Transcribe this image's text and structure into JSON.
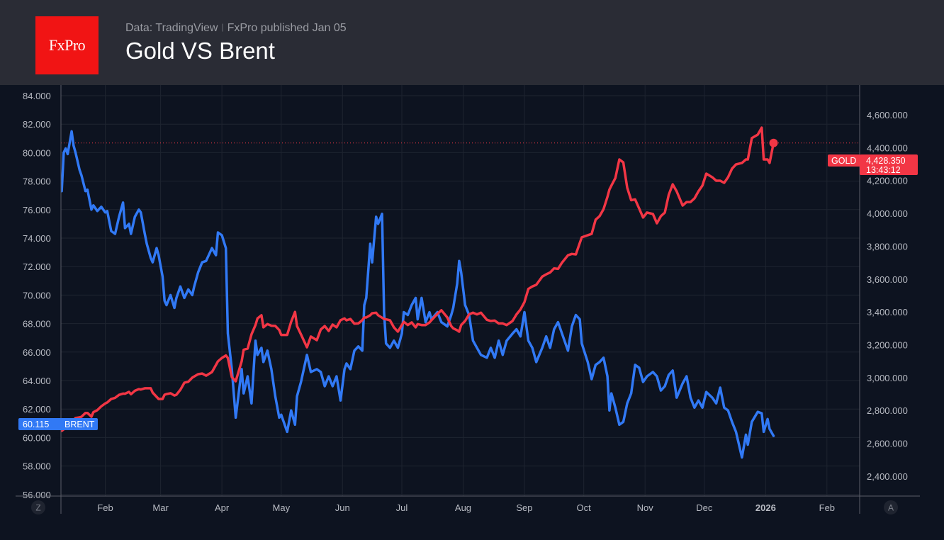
{
  "header": {
    "logo_text": "FxPro",
    "source": "Data: TradingView",
    "published": "FxPro published Jan 05",
    "title": "Gold VS Brent"
  },
  "chart_data": {
    "type": "line",
    "title": "Gold VS Brent",
    "colors": {
      "Brent": "#3179f5",
      "Gold": "#f23645",
      "background": "#0d1320",
      "grid": "#1e2430"
    },
    "left_axis": {
      "series": "Brent",
      "ylim": [
        56,
        84
      ],
      "ticks": [
        "84.000",
        "82.000",
        "80.000",
        "78.000",
        "76.000",
        "74.000",
        "72.000",
        "70.000",
        "68.000",
        "66.000",
        "64.000",
        "62.000",
        "60.000",
        "58.000",
        "56.000"
      ]
    },
    "right_axis": {
      "series": "Gold",
      "ylim": [
        2400,
        4600
      ],
      "ticks": [
        "4,600.000",
        "4,400.000",
        "4,200.000",
        "4,000.000",
        "3,800.000",
        "3,600.000",
        "3,400.000",
        "3,200.000",
        "3,000.000",
        "2,800.000",
        "2,600.000",
        "2,400.000"
      ]
    },
    "x_ticks": [
      {
        "label": "Feb",
        "date": "2025-02-01"
      },
      {
        "label": "Mar",
        "date": "2025-03-01"
      },
      {
        "label": "Apr",
        "date": "2025-04-01"
      },
      {
        "label": "May",
        "date": "2025-05-01"
      },
      {
        "label": "Jun",
        "date": "2025-06-01"
      },
      {
        "label": "Jul",
        "date": "2025-07-01"
      },
      {
        "label": "Aug",
        "date": "2025-08-01"
      },
      {
        "label": "Sep",
        "date": "2025-09-01"
      },
      {
        "label": "Oct",
        "date": "2025-10-01"
      },
      {
        "label": "Nov",
        "date": "2025-11-01"
      },
      {
        "label": "Dec",
        "date": "2025-12-01"
      },
      {
        "label": "2026",
        "date": "2026-01-01"
      },
      {
        "label": "Feb",
        "date": "2026-02-01"
      }
    ],
    "grid": true,
    "axis_buttons": {
      "left": "Z",
      "right": "A"
    },
    "last_labels": {
      "brent": {
        "name": "BRENT",
        "value": "60.115"
      },
      "gold": {
        "name": "GOLD",
        "value": "4,428.350",
        "time": "13:43:12"
      }
    },
    "columns": [
      "date",
      "Brent",
      "Gold"
    ],
    "points": [
      [
        "2025-01-10",
        77.3,
        2676
      ],
      [
        "2025-01-11",
        80.0,
        2685
      ],
      [
        "2025-01-12",
        80.3,
        2694
      ],
      [
        "2025-01-13",
        79.9,
        2710
      ],
      [
        "2025-01-15",
        81.5,
        2732
      ],
      [
        "2025-01-16",
        80.5,
        2743
      ],
      [
        "2025-01-17",
        80.0,
        2754
      ],
      [
        "2025-01-19",
        78.8,
        2758
      ],
      [
        "2025-01-20",
        78.4,
        2762
      ],
      [
        "2025-01-22",
        77.3,
        2785
      ],
      [
        "2025-01-23",
        77.4,
        2785
      ],
      [
        "2025-01-25",
        76.0,
        2762
      ],
      [
        "2025-01-26",
        76.3,
        2790
      ],
      [
        "2025-01-28",
        75.9,
        2802
      ],
      [
        "2025-01-30",
        76.2,
        2825
      ],
      [
        "2025-02-01",
        75.8,
        2843
      ],
      [
        "2025-02-02",
        75.9,
        2849
      ],
      [
        "2025-02-04",
        74.5,
        2870
      ],
      [
        "2025-02-06",
        74.3,
        2877
      ],
      [
        "2025-02-08",
        75.5,
        2895
      ],
      [
        "2025-02-10",
        76.5,
        2903
      ],
      [
        "2025-02-11",
        74.7,
        2902
      ],
      [
        "2025-02-13",
        75.0,
        2913
      ],
      [
        "2025-02-14",
        74.3,
        2899
      ],
      [
        "2025-02-16",
        75.5,
        2920
      ],
      [
        "2025-02-18",
        76.0,
        2930
      ],
      [
        "2025-02-19",
        75.8,
        2928
      ],
      [
        "2025-02-21",
        74.3,
        2935
      ],
      [
        "2025-02-22",
        73.6,
        2935
      ],
      [
        "2025-02-24",
        72.6,
        2935
      ],
      [
        "2025-02-25",
        72.3,
        2909
      ],
      [
        "2025-02-27",
        73.3,
        2883
      ],
      [
        "2025-02-28",
        72.8,
        2870
      ],
      [
        "2025-03-02",
        71.3,
        2870
      ],
      [
        "2025-03-03",
        69.6,
        2896
      ],
      [
        "2025-03-04",
        69.3,
        2900
      ],
      [
        "2025-03-06",
        70.0,
        2905
      ],
      [
        "2025-03-08",
        69.1,
        2891
      ],
      [
        "2025-03-09",
        69.8,
        2896
      ],
      [
        "2025-03-11",
        70.6,
        2926
      ],
      [
        "2025-03-13",
        69.8,
        2969
      ],
      [
        "2025-03-15",
        70.4,
        2975
      ],
      [
        "2025-03-17",
        70.0,
        3000
      ],
      [
        "2025-03-18",
        70.6,
        3007
      ],
      [
        "2025-03-20",
        71.6,
        3021
      ],
      [
        "2025-03-22",
        72.3,
        3025
      ],
      [
        "2025-03-24",
        72.4,
        3012
      ],
      [
        "2025-03-27",
        73.3,
        3034
      ],
      [
        "2025-03-29",
        72.8,
        3077
      ],
      [
        "2025-03-30",
        74.4,
        3099
      ],
      [
        "2025-04-01",
        74.2,
        3120
      ],
      [
        "2025-04-03",
        73.3,
        3135
      ],
      [
        "2025-04-04",
        67.3,
        3120
      ],
      [
        "2025-04-06",
        64.8,
        3003
      ],
      [
        "2025-04-08",
        61.4,
        2978
      ],
      [
        "2025-04-11",
        64.8,
        3099
      ],
      [
        "2025-04-12",
        63.1,
        3170
      ],
      [
        "2025-04-14",
        64.3,
        3177
      ],
      [
        "2025-04-16",
        62.4,
        3264
      ],
      [
        "2025-04-18",
        66.8,
        3320
      ],
      [
        "2025-04-19",
        65.8,
        3360
      ],
      [
        "2025-04-21",
        66.3,
        3380
      ],
      [
        "2025-04-22",
        65.3,
        3306
      ],
      [
        "2025-04-24",
        66.1,
        3326
      ],
      [
        "2025-04-26",
        64.8,
        3316
      ],
      [
        "2025-04-28",
        62.9,
        3315
      ],
      [
        "2025-04-30",
        61.4,
        3290
      ],
      [
        "2025-05-01",
        61.6,
        3260
      ],
      [
        "2025-05-04",
        60.4,
        3260
      ],
      [
        "2025-05-06",
        61.9,
        3340
      ],
      [
        "2025-05-08",
        60.9,
        3400
      ],
      [
        "2025-05-09",
        62.9,
        3314
      ],
      [
        "2025-05-11",
        63.9,
        3263
      ],
      [
        "2025-05-14",
        65.8,
        3185
      ],
      [
        "2025-05-16",
        64.6,
        3250
      ],
      [
        "2025-05-19",
        64.8,
        3228
      ],
      [
        "2025-05-21",
        64.6,
        3293
      ],
      [
        "2025-05-23",
        63.6,
        3314
      ],
      [
        "2025-05-25",
        64.3,
        3284
      ],
      [
        "2025-05-27",
        63.6,
        3323
      ],
      [
        "2025-05-29",
        64.3,
        3306
      ],
      [
        "2025-05-31",
        62.6,
        3350
      ],
      [
        "2025-06-02",
        64.8,
        3360
      ],
      [
        "2025-06-03",
        65.2,
        3349
      ],
      [
        "2025-06-05",
        64.8,
        3357
      ],
      [
        "2025-06-07",
        66.1,
        3328
      ],
      [
        "2025-06-09",
        66.4,
        3330
      ],
      [
        "2025-06-11",
        66.1,
        3350
      ],
      [
        "2025-06-12",
        69.3,
        3366
      ],
      [
        "2025-06-13",
        69.8,
        3366
      ],
      [
        "2025-06-15",
        73.6,
        3380
      ],
      [
        "2025-06-16",
        72.3,
        3392
      ],
      [
        "2025-06-18",
        75.5,
        3395
      ],
      [
        "2025-06-19",
        75.0,
        3380
      ],
      [
        "2025-06-21",
        75.7,
        3365
      ],
      [
        "2025-06-22",
        68.8,
        3357
      ],
      [
        "2025-06-23",
        66.6,
        3355
      ],
      [
        "2025-06-25",
        66.3,
        3349
      ],
      [
        "2025-06-27",
        66.8,
        3306
      ],
      [
        "2025-06-29",
        66.3,
        3280
      ],
      [
        "2025-07-01",
        67.3,
        3320
      ],
      [
        "2025-07-02",
        68.8,
        3340
      ],
      [
        "2025-07-04",
        68.6,
        3320
      ],
      [
        "2025-07-06",
        69.3,
        3336
      ],
      [
        "2025-07-08",
        69.8,
        3306
      ],
      [
        "2025-07-09",
        68.3,
        3326
      ],
      [
        "2025-07-11",
        69.8,
        3320
      ],
      [
        "2025-07-13",
        68.1,
        3320
      ],
      [
        "2025-07-15",
        68.8,
        3336
      ],
      [
        "2025-07-16",
        68.3,
        3350
      ],
      [
        "2025-07-19",
        68.8,
        3388
      ],
      [
        "2025-07-21",
        68.1,
        3410
      ],
      [
        "2025-07-24",
        67.8,
        3366
      ],
      [
        "2025-07-26",
        68.6,
        3314
      ],
      [
        "2025-07-27",
        69.1,
        3300
      ],
      [
        "2025-07-29",
        70.8,
        3288
      ],
      [
        "2025-07-30",
        72.4,
        3280
      ],
      [
        "2025-07-31",
        71.6,
        3320
      ],
      [
        "2025-08-02",
        69.3,
        3345
      ],
      [
        "2025-08-04",
        68.6,
        3385
      ],
      [
        "2025-08-06",
        66.8,
        3395
      ],
      [
        "2025-08-08",
        66.3,
        3385
      ],
      [
        "2025-08-10",
        65.8,
        3395
      ],
      [
        "2025-08-13",
        65.6,
        3352
      ],
      [
        "2025-08-15",
        66.3,
        3345
      ],
      [
        "2025-08-17",
        65.6,
        3347
      ],
      [
        "2025-08-19",
        66.8,
        3330
      ],
      [
        "2025-08-21",
        65.8,
        3330
      ],
      [
        "2025-08-23",
        66.8,
        3320
      ],
      [
        "2025-08-26",
        67.3,
        3345
      ],
      [
        "2025-08-28",
        67.6,
        3385
      ],
      [
        "2025-08-30",
        67.1,
        3415
      ],
      [
        "2025-09-01",
        68.8,
        3460
      ],
      [
        "2025-09-03",
        66.8,
        3540
      ],
      [
        "2025-09-05",
        66.3,
        3555
      ],
      [
        "2025-09-07",
        65.3,
        3565
      ],
      [
        "2025-09-10",
        66.3,
        3615
      ],
      [
        "2025-09-12",
        67.1,
        3629
      ],
      [
        "2025-09-14",
        66.3,
        3640
      ],
      [
        "2025-09-16",
        67.6,
        3665
      ],
      [
        "2025-09-18",
        68.1,
        3662
      ],
      [
        "2025-09-20",
        67.3,
        3700
      ],
      [
        "2025-09-23",
        66.1,
        3745
      ],
      [
        "2025-09-25",
        67.8,
        3753
      ],
      [
        "2025-09-27",
        68.6,
        3750
      ],
      [
        "2025-09-29",
        68.3,
        3820
      ],
      [
        "2025-09-30",
        66.6,
        3854
      ],
      [
        "2025-10-03",
        65.3,
        3867
      ],
      [
        "2025-10-05",
        64.1,
        3875
      ],
      [
        "2025-10-07",
        65.1,
        3961
      ],
      [
        "2025-10-09",
        65.3,
        3983
      ],
      [
        "2025-10-11",
        65.6,
        4026
      ],
      [
        "2025-10-13",
        64.3,
        4100
      ],
      [
        "2025-10-14",
        61.9,
        4145
      ],
      [
        "2025-10-15",
        63.1,
        4169
      ],
      [
        "2025-10-17",
        62.1,
        4215
      ],
      [
        "2025-10-19",
        60.9,
        4328
      ],
      [
        "2025-10-21",
        61.1,
        4310
      ],
      [
        "2025-10-23",
        62.4,
        4156
      ],
      [
        "2025-10-25",
        63.1,
        4080
      ],
      [
        "2025-10-27",
        65.1,
        4085
      ],
      [
        "2025-10-29",
        64.9,
        4030
      ],
      [
        "2025-10-31",
        63.9,
        3975
      ],
      [
        "2025-11-02",
        64.3,
        4005
      ],
      [
        "2025-11-05",
        64.6,
        3996
      ],
      [
        "2025-11-07",
        64.3,
        3940
      ],
      [
        "2025-11-09",
        63.3,
        3983
      ],
      [
        "2025-11-11",
        63.6,
        4005
      ],
      [
        "2025-11-13",
        64.4,
        4113
      ],
      [
        "2025-11-15",
        64.7,
        4177
      ],
      [
        "2025-11-17",
        62.8,
        4134
      ],
      [
        "2025-11-20",
        63.8,
        4048
      ],
      [
        "2025-11-22",
        64.3,
        4069
      ],
      [
        "2025-11-24",
        62.8,
        4069
      ],
      [
        "2025-11-26",
        62.1,
        4091
      ],
      [
        "2025-11-28",
        62.6,
        4134
      ],
      [
        "2025-11-30",
        62.1,
        4169
      ],
      [
        "2025-12-02",
        63.2,
        4242
      ],
      [
        "2025-12-05",
        62.8,
        4220
      ],
      [
        "2025-12-07",
        62.4,
        4199
      ],
      [
        "2025-12-09",
        63.5,
        4199
      ],
      [
        "2025-12-11",
        62.1,
        4186
      ],
      [
        "2025-12-13",
        61.9,
        4220
      ],
      [
        "2025-12-15",
        61.1,
        4272
      ],
      [
        "2025-12-17",
        60.4,
        4298
      ],
      [
        "2025-12-20",
        58.6,
        4307
      ],
      [
        "2025-12-22",
        60.2,
        4328
      ],
      [
        "2025-12-23",
        59.5,
        4328
      ],
      [
        "2025-12-25",
        61.1,
        4458
      ],
      [
        "2025-12-28",
        61.8,
        4479
      ],
      [
        "2025-12-30",
        61.7,
        4522
      ],
      [
        "2025-12-31",
        60.4,
        4328
      ],
      [
        "2026-01-02",
        61.3,
        4328
      ],
      [
        "2026-01-03",
        60.6,
        4307
      ],
      [
        "2026-01-05",
        60.115,
        4428.35
      ]
    ]
  }
}
